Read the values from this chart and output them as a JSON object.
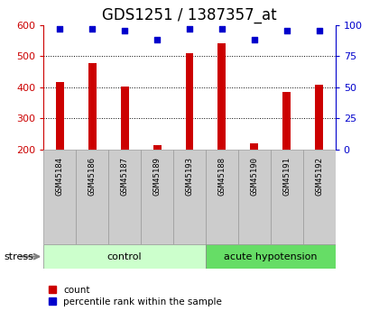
{
  "title": "GDS1251 / 1387357_at",
  "samples": [
    "GSM45184",
    "GSM45186",
    "GSM45187",
    "GSM45189",
    "GSM45193",
    "GSM45188",
    "GSM45190",
    "GSM45191",
    "GSM45192"
  ],
  "counts": [
    415,
    478,
    403,
    213,
    508,
    540,
    218,
    383,
    408
  ],
  "percentiles": [
    97,
    97,
    95,
    88,
    97,
    97,
    88,
    95,
    95
  ],
  "n_control": 5,
  "n_acute": 4,
  "ylim_left": [
    200,
    600
  ],
  "ylim_right": [
    0,
    100
  ],
  "yticks_left": [
    200,
    300,
    400,
    500,
    600
  ],
  "yticks_right": [
    0,
    25,
    50,
    75,
    100
  ],
  "bar_color": "#cc0000",
  "scatter_color": "#0000cc",
  "control_bg": "#ccffcc",
  "acute_bg": "#66dd66",
  "sample_bg": "#cccccc",
  "grid_color": "#000000",
  "left_tick_color": "#cc0000",
  "right_tick_color": "#0000cc",
  "title_fontsize": 12,
  "bar_width": 0.25
}
